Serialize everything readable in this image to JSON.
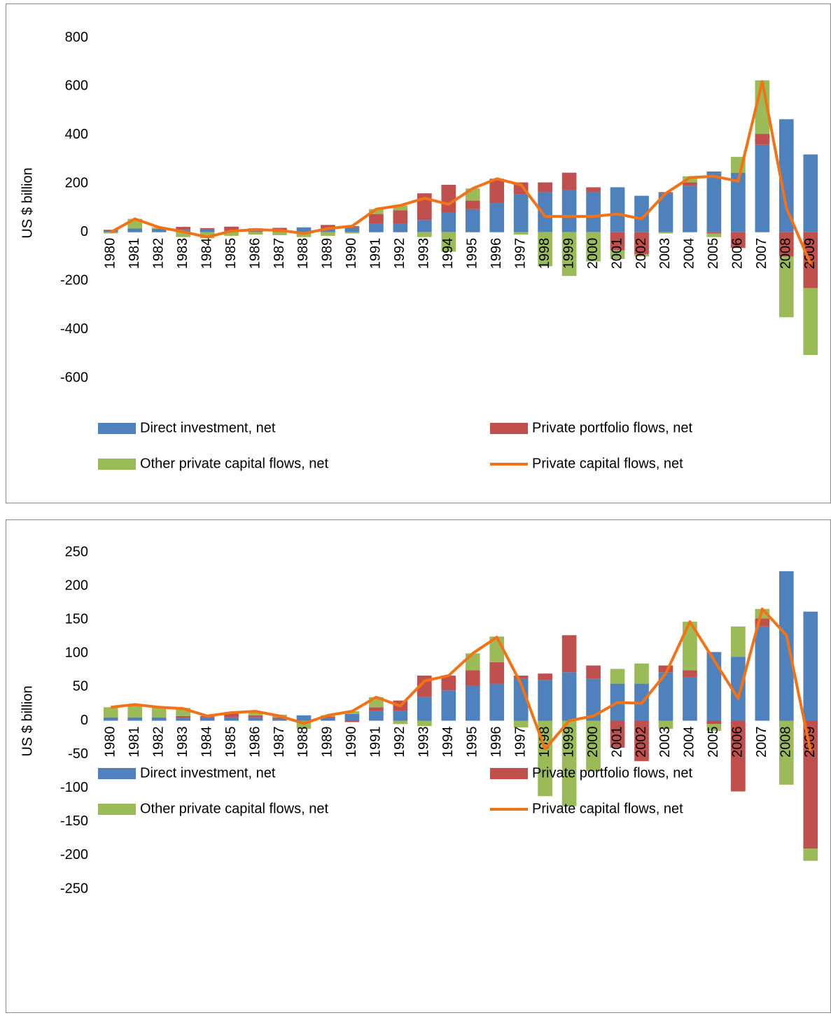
{
  "chart_data": [
    {
      "type": "bar",
      "ylabel": "US $ billion",
      "categories": [
        "1980",
        "1981",
        "1982",
        "1983",
        "1984",
        "1985",
        "1986",
        "1987",
        "1988",
        "1989",
        "1990",
        "1991",
        "1992",
        "1993",
        "1994",
        "1995",
        "1996",
        "1997",
        "1998",
        "1999",
        "2000",
        "2001",
        "2002",
        "2003",
        "2004",
        "2005",
        "2006",
        "2007",
        "2008",
        "2009"
      ],
      "series": [
        {
          "name": "Direct investment, net",
          "color": "#4f81bd",
          "type": "bar",
          "values": [
            5,
            15,
            12,
            10,
            12,
            8,
            8,
            8,
            20,
            15,
            20,
            35,
            35,
            50,
            80,
            95,
            120,
            155,
            165,
            175,
            165,
            185,
            150,
            160,
            190,
            250,
            245,
            360,
            465,
            320
          ]
        },
        {
          "name": "Private portfolio flows, net",
          "color": "#c0504d",
          "type": "bar",
          "values": [
            5,
            0,
            2,
            12,
            5,
            15,
            8,
            10,
            0,
            15,
            5,
            40,
            55,
            110,
            115,
            35,
            100,
            50,
            40,
            70,
            20,
            -75,
            -90,
            5,
            15,
            -5,
            -65,
            45,
            -100,
            -230
          ]
        },
        {
          "name": "Other private capital flows, net",
          "color": "#9bbb59",
          "type": "bar",
          "values": [
            -5,
            40,
            5,
            -20,
            -25,
            -15,
            -10,
            -12,
            -20,
            -15,
            -5,
            20,
            20,
            -20,
            -80,
            50,
            0,
            -10,
            -140,
            -180,
            -120,
            -35,
            -10,
            -5,
            25,
            -15,
            65,
            220,
            -250,
            -275
          ]
        },
        {
          "name": "Private capital flows, net",
          "color": "#f47216",
          "type": "line",
          "values": [
            0,
            55,
            20,
            2,
            -20,
            5,
            10,
            8,
            -5,
            15,
            25,
            95,
            110,
            140,
            115,
            180,
            220,
            195,
            65,
            65,
            65,
            75,
            55,
            160,
            225,
            230,
            210,
            620,
            100,
            -130
          ]
        }
      ],
      "ylim": [
        -600,
        800
      ],
      "yticks": [
        -600,
        -400,
        -200,
        0,
        200,
        400,
        600,
        800
      ]
    },
    {
      "type": "bar",
      "ylabel": "US $ billion",
      "categories": [
        "1980",
        "1981",
        "1982",
        "1983",
        "1984",
        "1985",
        "1986",
        "1987",
        "1988",
        "1989",
        "1990",
        "1991",
        "1992",
        "1993",
        "1994",
        "1995",
        "1996",
        "1997",
        "1998",
        "1999",
        "2000",
        "2001",
        "2002",
        "2003",
        "2004",
        "2005",
        "2006",
        "2007",
        "2008",
        "2009"
      ],
      "series": [
        {
          "name": "Direct investment, net",
          "color": "#4f81bd",
          "type": "bar",
          "values": [
            5,
            5,
            5,
            4,
            5,
            5,
            5,
            3,
            8,
            4,
            10,
            15,
            15,
            35,
            45,
            52,
            55,
            62,
            60,
            72,
            62,
            55,
            55,
            72,
            65,
            102,
            95,
            140,
            222,
            162
          ]
        },
        {
          "name": "Private portfolio flows, net",
          "color": "#c0504d",
          "type": "bar",
          "values": [
            0,
            0,
            0,
            3,
            2,
            7,
            3,
            2,
            0,
            2,
            -2,
            5,
            15,
            32,
            22,
            23,
            32,
            5,
            10,
            55,
            20,
            -40,
            -60,
            10,
            10,
            -5,
            -105,
            12,
            0,
            -190
          ]
        },
        {
          "name": "Other private capital flows, net",
          "color": "#9bbb59",
          "type": "bar",
          "values": [
            15,
            18,
            15,
            12,
            0,
            0,
            6,
            4,
            -12,
            2,
            4,
            15,
            -5,
            -8,
            0,
            25,
            38,
            -10,
            -112,
            -127,
            -75,
            22,
            30,
            -12,
            72,
            -10,
            45,
            14,
            -95,
            -18
          ]
        },
        {
          "name": "Private capital flows, net",
          "color": "#f47216",
          "type": "line",
          "values": [
            20,
            24,
            20,
            18,
            7,
            12,
            14,
            7,
            -4,
            8,
            14,
            35,
            22,
            59,
            67,
            100,
            124,
            55,
            -42,
            0,
            7,
            27,
            26,
            70,
            147,
            90,
            33,
            166,
            127,
            -45
          ]
        }
      ],
      "ylim": [
        -250,
        250
      ],
      "yticks": [
        -250,
        -200,
        -150,
        -100,
        -50,
        0,
        50,
        100,
        150,
        200,
        250
      ]
    }
  ]
}
